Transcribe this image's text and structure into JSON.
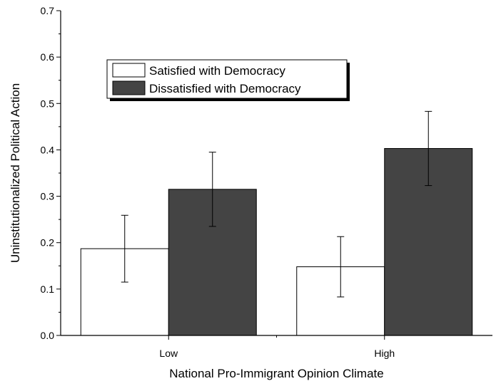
{
  "chart_data": {
    "type": "bar",
    "title": "",
    "categories": [
      "Low",
      "High"
    ],
    "xlabel": "National Pro-Immigrant Opinion Climate",
    "ylabel": "Uninstitutionalized Political Action",
    "ylim": [
      0,
      0.7
    ],
    "yticks": [
      "0.0",
      "0.1",
      "0.2",
      "0.3",
      "0.4",
      "0.5",
      "0.6",
      "0.7"
    ],
    "grid": false,
    "legend_position": "top-left",
    "series": [
      {
        "name": "Satisfied with Democracy",
        "color": "#ffffff",
        "values": [
          0.187,
          0.148
        ],
        "error_low": [
          0.115,
          0.083
        ],
        "error_high": [
          0.259,
          0.213
        ]
      },
      {
        "name": "Dissatisfied with Democracy",
        "color": "#444444",
        "values": [
          0.315,
          0.403
        ],
        "error_low": [
          0.235,
          0.323
        ],
        "error_high": [
          0.395,
          0.483
        ]
      }
    ]
  }
}
